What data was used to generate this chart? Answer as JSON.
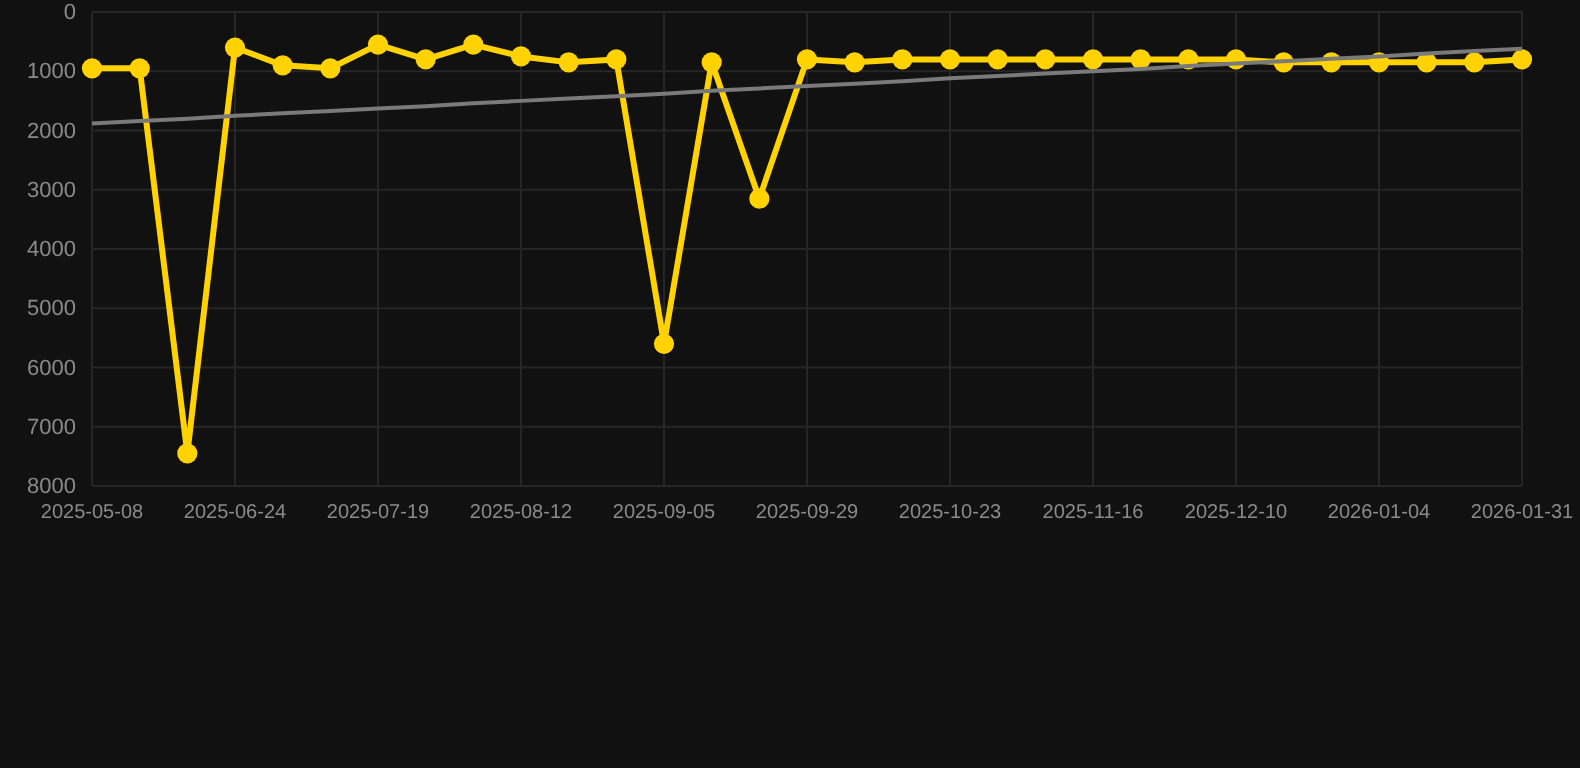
{
  "chart_data": {
    "type": "line",
    "categories": [
      "2025-05-08",
      null,
      null,
      "2025-06-24",
      null,
      null,
      "2025-07-19",
      null,
      null,
      "2025-08-12",
      null,
      null,
      "2025-09-05",
      null,
      null,
      "2025-09-29",
      null,
      null,
      "2025-10-23",
      null,
      null,
      "2025-11-16",
      null,
      null,
      "2025-12-10",
      null,
      null,
      "2026-01-04",
      null,
      null,
      "2026-01-31"
    ],
    "series": [
      {
        "color": "#ffd200",
        "marker": "circle",
        "values": [
          950,
          950,
          7450,
          600,
          900,
          950,
          550,
          800,
          550,
          750,
          850,
          800,
          5600,
          850,
          3150,
          800,
          850,
          800,
          800,
          800,
          800,
          800,
          800,
          800,
          800,
          850,
          850,
          850,
          850,
          850,
          800
        ]
      },
      {
        "color": "#7a7a7a",
        "marker": "none",
        "values": [
          1880,
          1840,
          1800,
          1750,
          1710,
          1670,
          1630,
          1590,
          1540,
          1500,
          1460,
          1420,
          1380,
          1330,
          1290,
          1250,
          1210,
          1170,
          1120,
          1080,
          1040,
          1000,
          960,
          910,
          870,
          830,
          790,
          750,
          700,
          660,
          620
        ]
      }
    ],
    "ylim": [
      8000,
      0
    ],
    "yticks": [
      0,
      1000,
      2000,
      3000,
      4000,
      5000,
      6000,
      7000,
      8000
    ],
    "grid": true
  }
}
